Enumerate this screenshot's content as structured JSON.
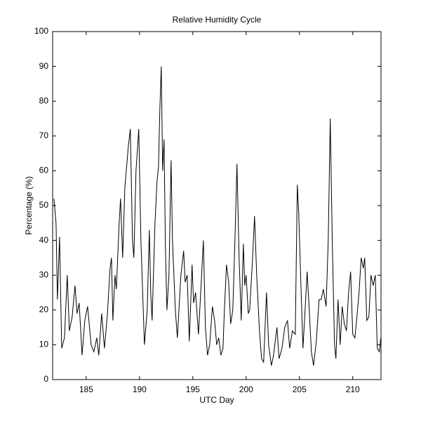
{
  "chart_data": {
    "type": "line",
    "title": "Relative Humidity Cycle",
    "x_label": "UTC Day",
    "y_label": "Percentage (%)",
    "xlim": [
      181.85,
      212.65
    ],
    "ylim": [
      0,
      100
    ],
    "xticks": [
      185,
      190,
      195,
      200,
      205,
      210
    ],
    "yticks": [
      0,
      10,
      20,
      30,
      40,
      50,
      60,
      70,
      80,
      90,
      100
    ],
    "grid": false,
    "x": [
      181.97,
      182.17,
      182.3,
      182.5,
      182.7,
      182.96,
      183.22,
      183.42,
      183.68,
      183.95,
      184.14,
      184.34,
      184.61,
      184.87,
      185.13,
      185.46,
      185.72,
      185.99,
      186.18,
      186.45,
      186.71,
      186.97,
      187.24,
      187.37,
      187.5,
      187.7,
      187.83,
      188.09,
      188.22,
      188.42,
      188.62,
      188.95,
      189.14,
      189.34,
      189.47,
      189.67,
      189.93,
      190.13,
      190.46,
      190.72,
      190.92,
      191.05,
      191.18,
      191.45,
      191.64,
      191.78,
      191.91,
      192.04,
      192.17,
      192.3,
      192.43,
      192.57,
      192.76,
      192.96,
      193.09,
      193.36,
      193.55,
      193.88,
      194.14,
      194.28,
      194.47,
      194.67,
      194.93,
      195.07,
      195.26,
      195.53,
      195.79,
      195.99,
      196.18,
      196.38,
      196.58,
      196.84,
      197.04,
      197.24,
      197.43,
      197.63,
      197.83,
      197.96,
      198.16,
      198.36,
      198.55,
      198.75,
      198.95,
      199.14,
      199.34,
      199.54,
      199.74,
      199.87,
      200.0,
      200.2,
      200.33,
      200.59,
      200.79,
      200.99,
      201.25,
      201.45,
      201.64,
      201.91,
      202.11,
      202.37,
      202.57,
      202.89,
      203.09,
      203.36,
      203.62,
      203.88,
      204.08,
      204.34,
      204.61,
      204.8,
      204.93,
      205.13,
      205.33,
      205.53,
      205.72,
      205.92,
      206.12,
      206.32,
      206.58,
      206.84,
      207.04,
      207.24,
      207.5,
      207.7,
      207.89,
      208.09,
      208.29,
      208.42,
      208.62,
      208.82,
      209.01,
      209.21,
      209.41,
      209.61,
      209.8,
      210.0,
      210.2,
      210.39,
      210.59,
      210.79,
      210.99,
      211.12,
      211.32,
      211.51,
      211.71,
      211.91,
      212.11,
      212.3,
      212.5,
      212.63
    ],
    "series": [
      {
        "color": "#000000",
        "values": [
          52,
          45,
          23,
          41,
          9,
          12,
          30,
          14,
          18,
          27,
          19,
          22,
          7,
          17,
          21,
          10,
          8,
          12,
          7,
          19,
          9,
          18,
          32,
          35,
          17,
          30,
          26,
          45,
          52,
          35,
          55,
          67,
          72,
          40,
          35,
          60,
          72,
          40,
          10,
          20,
          43,
          25,
          17,
          45,
          57,
          61,
          78,
          90,
          60,
          69,
          38,
          20,
          30,
          63,
          40,
          20,
          12,
          30,
          37,
          28,
          30,
          11,
          33,
          22,
          25,
          13,
          28,
          40,
          15,
          7,
          10,
          21,
          17,
          10,
          12,
          7,
          9,
          20,
          33,
          28,
          16,
          20,
          40,
          62,
          35,
          17,
          39,
          27,
          30,
          19,
          20,
          34,
          47,
          30,
          14,
          6,
          5,
          25,
          10,
          4,
          7,
          15,
          6,
          9,
          15,
          17,
          9,
          14,
          13,
          56,
          48,
          28,
          9,
          20,
          31,
          20,
          8,
          4,
          11,
          23,
          23,
          26,
          21,
          40,
          75,
          38,
          10,
          6,
          23,
          10,
          21,
          16,
          14,
          25,
          31,
          13,
          12,
          18,
          25,
          35,
          32,
          35,
          17,
          18,
          30,
          27,
          30,
          9,
          8,
          12
        ]
      }
    ]
  }
}
